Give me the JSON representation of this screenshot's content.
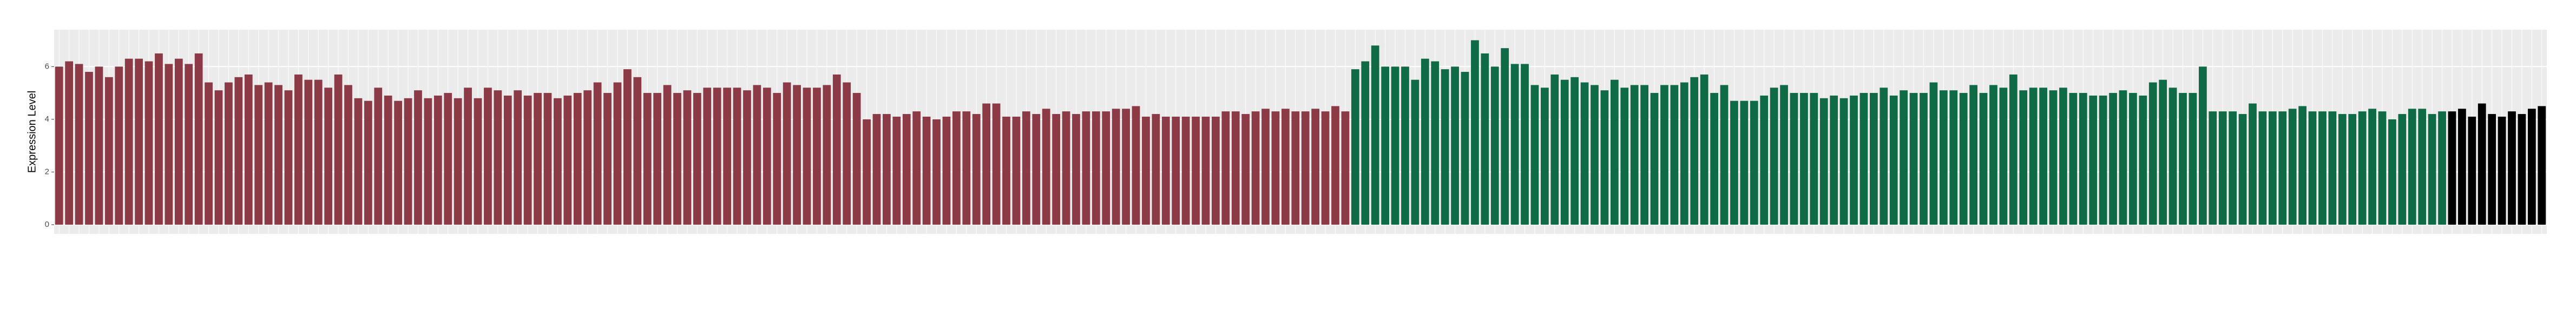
{
  "chart_data": {
    "type": "bar",
    "y_label": "Expression Level",
    "ylim": [
      -0.35,
      7.4
    ],
    "yticks": [
      0,
      2,
      4,
      6
    ],
    "grid": true,
    "categories": [
      null,
      null,
      null,
      null,
      null,
      null,
      null,
      null,
      null,
      null,
      null,
      null,
      null,
      null,
      null,
      null,
      null,
      null,
      null,
      null,
      null,
      null,
      null,
      null,
      null,
      null,
      null,
      null,
      null,
      null,
      null,
      null,
      null,
      null,
      null,
      null,
      null,
      null,
      null,
      null,
      null,
      null,
      null,
      null,
      null,
      null,
      null,
      null,
      null,
      null,
      null,
      null,
      null,
      null,
      null,
      null,
      null,
      null,
      null,
      null,
      null,
      null,
      null,
      null,
      null,
      null,
      null,
      null,
      null,
      null,
      null,
      null,
      null,
      null,
      null,
      null,
      null,
      null,
      null,
      null,
      null,
      null,
      null,
      null,
      null,
      null,
      null,
      null,
      null,
      null,
      null,
      null,
      null,
      null,
      null,
      null,
      null,
      null,
      null,
      null,
      null,
      null,
      null,
      null,
      null,
      null,
      null,
      null,
      null,
      null,
      null,
      null,
      null,
      null,
      null,
      null,
      null,
      null,
      null,
      null,
      null,
      null,
      null,
      null,
      null,
      null,
      null,
      null,
      null,
      null,
      null,
      null,
      null,
      null,
      null,
      null,
      null,
      null,
      null,
      null,
      null,
      null,
      null,
      null,
      null,
      null,
      null,
      null,
      null,
      null,
      null,
      null,
      null,
      null,
      null,
      null,
      null,
      null,
      null,
      null,
      null,
      null,
      null,
      null,
      null,
      null,
      null,
      null,
      null,
      null,
      null,
      null,
      null,
      null,
      null,
      null,
      null,
      null,
      null,
      null,
      null,
      null,
      null,
      null,
      null,
      null,
      null,
      null,
      null,
      null,
      null,
      null,
      null,
      null,
      null,
      null,
      null,
      null,
      null,
      null,
      null,
      null,
      null,
      null,
      null,
      null,
      null,
      null,
      null,
      null,
      null,
      null,
      null,
      null,
      null,
      null,
      null,
      null,
      null,
      null,
      null,
      null,
      null,
      null,
      null,
      null,
      null,
      null,
      null,
      null,
      null,
      null,
      null,
      null,
      null,
      null,
      null,
      null,
      null,
      null,
      null,
      null,
      null,
      null,
      null,
      null,
      null,
      null,
      null,
      null
    ],
    "values": [
      6.0,
      6.2,
      6.1,
      5.8,
      6.0,
      5.6,
      6.0,
      6.3,
      6.3,
      6.2,
      6.5,
      6.1,
      6.3,
      6.1,
      6.5,
      5.4,
      5.1,
      5.4,
      5.6,
      5.7,
      5.3,
      5.4,
      5.3,
      5.1,
      5.7,
      5.5,
      5.5,
      5.2,
      5.7,
      5.3,
      4.8,
      4.7,
      5.2,
      4.9,
      4.7,
      4.8,
      5.1,
      4.8,
      4.9,
      5.0,
      4.8,
      5.2,
      4.8,
      5.2,
      5.1,
      4.9,
      5.1,
      4.9,
      5.0,
      5.0,
      4.8,
      4.9,
      5.0,
      5.1,
      5.4,
      5.0,
      5.4,
      5.9,
      5.6,
      5.0,
      5.0,
      5.3,
      5.0,
      5.1,
      5.0,
      5.2,
      5.2,
      5.2,
      5.2,
      5.1,
      5.3,
      5.2,
      5.0,
      5.4,
      5.3,
      5.2,
      5.2,
      5.3,
      5.7,
      5.4,
      5.0,
      4.0,
      4.2,
      4.2,
      4.1,
      4.2,
      4.3,
      4.1,
      4.0,
      4.1,
      4.3,
      4.3,
      4.2,
      4.6,
      4.6,
      4.1,
      4.1,
      4.3,
      4.2,
      4.4,
      4.2,
      4.3,
      4.2,
      4.3,
      4.3,
      4.3,
      4.4,
      4.4,
      4.5,
      4.1,
      4.2,
      4.1,
      4.1,
      4.1,
      4.1,
      4.1,
      4.1,
      4.3,
      4.3,
      4.2,
      4.3,
      4.4,
      4.3,
      4.4,
      4.3,
      4.3,
      4.4,
      4.3,
      4.5,
      4.3,
      5.9,
      6.2,
      6.8,
      6.0,
      6.0,
      6.0,
      5.5,
      6.3,
      6.2,
      5.9,
      6.0,
      5.8,
      7.0,
      6.5,
      6.0,
      6.7,
      6.1,
      6.1,
      5.3,
      5.2,
      5.7,
      5.5,
      5.6,
      5.4,
      5.3,
      5.1,
      5.5,
      5.2,
      5.3,
      5.3,
      5.0,
      5.3,
      5.3,
      5.4,
      5.6,
      5.7,
      5.0,
      5.3,
      4.7,
      4.7,
      4.7,
      4.9,
      5.2,
      5.3,
      5.0,
      5.0,
      5.0,
      4.8,
      4.9,
      4.8,
      4.9,
      5.0,
      5.0,
      5.2,
      4.9,
      5.1,
      5.0,
      5.0,
      5.4,
      5.1,
      5.1,
      5.0,
      5.3,
      5.0,
      5.3,
      5.2,
      5.7,
      5.1,
      5.2,
      5.2,
      5.1,
      5.2,
      5.0,
      5.0,
      4.9,
      4.9,
      5.0,
      5.1,
      5.0,
      4.9,
      5.4,
      5.5,
      5.2,
      5.0,
      5.0,
      6.0,
      4.3,
      4.3,
      4.3,
      4.2,
      4.6,
      4.3,
      4.3,
      4.3,
      4.4,
      4.5,
      4.3,
      4.3,
      4.3,
      4.2,
      4.2,
      4.3,
      4.4,
      4.3,
      4.0,
      4.2,
      4.4,
      4.4,
      4.2,
      4.3,
      4.3,
      4.4,
      4.1,
      4.6,
      4.2,
      4.1,
      4.3,
      4.2,
      4.4,
      4.5
    ],
    "colors": [
      "#8b3a46",
      "#8b3a46",
      "#8b3a46",
      "#8b3a46",
      "#8b3a46",
      "#8b3a46",
      "#8b3a46",
      "#8b3a46",
      "#8b3a46",
      "#8b3a46",
      "#8b3a46",
      "#8b3a46",
      "#8b3a46",
      "#8b3a46",
      "#8b3a46",
      "#8b3a46",
      "#8b3a46",
      "#8b3a46",
      "#8b3a46",
      "#8b3a46",
      "#8b3a46",
      "#8b3a46",
      "#8b3a46",
      "#8b3a46",
      "#8b3a46",
      "#8b3a46",
      "#8b3a46",
      "#8b3a46",
      "#8b3a46",
      "#8b3a46",
      "#8b3a46",
      "#8b3a46",
      "#8b3a46",
      "#8b3a46",
      "#8b3a46",
      "#8b3a46",
      "#8b3a46",
      "#8b3a46",
      "#8b3a46",
      "#8b3a46",
      "#8b3a46",
      "#8b3a46",
      "#8b3a46",
      "#8b3a46",
      "#8b3a46",
      "#8b3a46",
      "#8b3a46",
      "#8b3a46",
      "#8b3a46",
      "#8b3a46",
      "#8b3a46",
      "#8b3a46",
      "#8b3a46",
      "#8b3a46",
      "#8b3a46",
      "#8b3a46",
      "#8b3a46",
      "#8b3a46",
      "#8b3a46",
      "#8b3a46",
      "#8b3a46",
      "#8b3a46",
      "#8b3a46",
      "#8b3a46",
      "#8b3a46",
      "#8b3a46",
      "#8b3a46",
      "#8b3a46",
      "#8b3a46",
      "#8b3a46",
      "#8b3a46",
      "#8b3a46",
      "#8b3a46",
      "#8b3a46",
      "#8b3a46",
      "#8b3a46",
      "#8b3a46",
      "#8b3a46",
      "#8b3a46",
      "#8b3a46",
      "#8b3a46",
      "#8b3a46",
      "#8b3a46",
      "#8b3a46",
      "#8b3a46",
      "#8b3a46",
      "#8b3a46",
      "#8b3a46",
      "#8b3a46",
      "#8b3a46",
      "#8b3a46",
      "#8b3a46",
      "#8b3a46",
      "#8b3a46",
      "#8b3a46",
      "#8b3a46",
      "#8b3a46",
      "#8b3a46",
      "#8b3a46",
      "#8b3a46",
      "#8b3a46",
      "#8b3a46",
      "#8b3a46",
      "#8b3a46",
      "#8b3a46",
      "#8b3a46",
      "#8b3a46",
      "#8b3a46",
      "#8b3a46",
      "#8b3a46",
      "#8b3a46",
      "#8b3a46",
      "#8b3a46",
      "#8b3a46",
      "#8b3a46",
      "#8b3a46",
      "#8b3a46",
      "#8b3a46",
      "#8b3a46",
      "#8b3a46",
      "#8b3a46",
      "#8b3a46",
      "#8b3a46",
      "#8b3a46",
      "#8b3a46",
      "#8b3a46",
      "#8b3a46",
      "#8b3a46",
      "#8b3a46",
      "#8b3a46",
      "#0e6b45",
      "#0e6b45",
      "#0e6b45",
      "#0e6b45",
      "#0e6b45",
      "#0e6b45",
      "#0e6b45",
      "#0e6b45",
      "#0e6b45",
      "#0e6b45",
      "#0e6b45",
      "#0e6b45",
      "#0e6b45",
      "#0e6b45",
      "#0e6b45",
      "#0e6b45",
      "#0e6b45",
      "#0e6b45",
      "#0e6b45",
      "#0e6b45",
      "#0e6b45",
      "#0e6b45",
      "#0e6b45",
      "#0e6b45",
      "#0e6b45",
      "#0e6b45",
      "#0e6b45",
      "#0e6b45",
      "#0e6b45",
      "#0e6b45",
      "#0e6b45",
      "#0e6b45",
      "#0e6b45",
      "#0e6b45",
      "#0e6b45",
      "#0e6b45",
      "#0e6b45",
      "#0e6b45",
      "#0e6b45",
      "#0e6b45",
      "#0e6b45",
      "#0e6b45",
      "#0e6b45",
      "#0e6b45",
      "#0e6b45",
      "#0e6b45",
      "#0e6b45",
      "#0e6b45",
      "#0e6b45",
      "#0e6b45",
      "#0e6b45",
      "#0e6b45",
      "#0e6b45",
      "#0e6b45",
      "#0e6b45",
      "#0e6b45",
      "#0e6b45",
      "#0e6b45",
      "#0e6b45",
      "#0e6b45",
      "#0e6b45",
      "#0e6b45",
      "#0e6b45",
      "#0e6b45",
      "#0e6b45",
      "#0e6b45",
      "#0e6b45",
      "#0e6b45",
      "#0e6b45",
      "#0e6b45",
      "#0e6b45",
      "#0e6b45",
      "#0e6b45",
      "#0e6b45",
      "#0e6b45",
      "#0e6b45",
      "#0e6b45",
      "#0e6b45",
      "#0e6b45",
      "#0e6b45",
      "#0e6b45",
      "#0e6b45",
      "#0e6b45",
      "#0e6b45",
      "#0e6b45",
      "#0e6b45",
      "#0e6b45",
      "#0e6b45",
      "#0e6b45",
      "#0e6b45",
      "#0e6b45",
      "#0e6b45",
      "#0e6b45",
      "#0e6b45",
      "#0e6b45",
      "#0e6b45",
      "#0e6b45",
      "#0e6b45",
      "#0e6b45",
      "#0e6b45",
      "#0e6b45",
      "#0e6b45",
      "#0e6b45",
      "#0e6b45",
      "#0e6b45",
      "#0e6b45",
      "#0e6b45",
      "#0e6b45",
      "#0e6b45",
      "#0e6b45"
    ]
  }
}
